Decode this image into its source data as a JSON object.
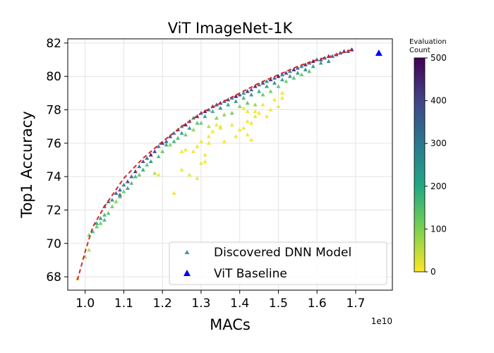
{
  "chart_data": {
    "type": "scatter",
    "title": "ViT ImageNet-1K",
    "xlabel": "MACs",
    "ylabel": "Top1 Accuracy",
    "x_offset_label": "1e10",
    "xlim": [
      0.955,
      1.795
    ],
    "ylim": [
      67.2,
      82.25
    ],
    "x_ticks": [
      1.0,
      1.1,
      1.2,
      1.3,
      1.4,
      1.5,
      1.6,
      1.7
    ],
    "x_tick_labels": [
      "1.0",
      "1.1",
      "1.2",
      "1.3",
      "1.4",
      "1.5",
      "1.6",
      "1.7"
    ],
    "y_ticks": [
      68,
      70,
      72,
      74,
      76,
      78,
      80,
      82
    ],
    "y_tick_labels": [
      "68",
      "70",
      "72",
      "74",
      "76",
      "78",
      "80",
      "82"
    ],
    "grid": true,
    "legend_position": "lower-right",
    "legend": [
      {
        "label": "Discovered DNN Model",
        "marker": "small-triangle",
        "color": "#4a8fc0"
      },
      {
        "label": "ViT Baseline",
        "marker": "triangle",
        "color": "#0000ff"
      }
    ],
    "pareto_front": {
      "style": "dashed",
      "color": "#d62728",
      "points": [
        [
          0.98,
          67.8
        ],
        [
          1.0,
          69.5
        ],
        [
          1.02,
          71.0
        ],
        [
          1.05,
          72.2
        ],
        [
          1.1,
          73.9
        ],
        [
          1.15,
          75.1
        ],
        [
          1.2,
          76.1
        ],
        [
          1.25,
          77.0
        ],
        [
          1.3,
          77.8
        ],
        [
          1.35,
          78.4
        ],
        [
          1.4,
          79.0
        ],
        [
          1.45,
          79.6
        ],
        [
          1.5,
          80.1
        ],
        [
          1.55,
          80.6
        ],
        [
          1.6,
          81.0
        ],
        [
          1.65,
          81.3
        ],
        [
          1.69,
          81.6
        ]
      ]
    },
    "baseline": {
      "label": "ViT Baseline",
      "x": 1.76,
      "y": 81.4,
      "color": "#0000ff"
    },
    "series": [
      {
        "name": "Discovered DNN Model",
        "description": "evaluation count encoded by color",
        "points": [
          [
            0.98,
            67.9,
            40
          ],
          [
            1.0,
            69.2,
            80
          ],
          [
            1.01,
            69.6,
            60
          ],
          [
            1.02,
            70.7,
            150
          ],
          [
            1.03,
            71.2,
            200
          ],
          [
            1.04,
            71.5,
            250
          ],
          [
            1.05,
            71.7,
            180
          ],
          [
            1.05,
            72.2,
            300
          ],
          [
            1.06,
            72.5,
            330
          ],
          [
            1.07,
            72.6,
            260
          ],
          [
            1.08,
            73.0,
            350
          ],
          [
            1.09,
            73.2,
            380
          ],
          [
            1.09,
            72.9,
            420
          ],
          [
            1.1,
            73.5,
            300
          ],
          [
            1.11,
            73.7,
            420
          ],
          [
            1.12,
            74.0,
            360
          ],
          [
            1.13,
            74.3,
            450
          ],
          [
            1.14,
            74.6,
            300
          ],
          [
            1.15,
            74.9,
            400
          ],
          [
            1.16,
            75.1,
            350
          ],
          [
            1.17,
            75.3,
            480
          ],
          [
            1.18,
            75.5,
            420
          ],
          [
            1.19,
            75.8,
            300
          ],
          [
            1.2,
            76.0,
            450
          ],
          [
            1.21,
            76.1,
            360
          ],
          [
            1.22,
            76.4,
            420
          ],
          [
            1.23,
            76.6,
            300
          ],
          [
            1.24,
            76.8,
            400
          ],
          [
            1.25,
            77.0,
            250
          ],
          [
            1.26,
            77.1,
            460
          ],
          [
            1.27,
            77.3,
            380
          ],
          [
            1.28,
            77.5,
            200
          ],
          [
            1.29,
            77.6,
            440
          ],
          [
            1.3,
            77.8,
            350
          ],
          [
            1.31,
            77.9,
            470
          ],
          [
            1.32,
            78.0,
            300
          ],
          [
            1.33,
            78.2,
            420
          ],
          [
            1.34,
            78.3,
            380
          ],
          [
            1.35,
            78.4,
            460
          ],
          [
            1.36,
            78.5,
            340
          ],
          [
            1.37,
            78.6,
            410
          ],
          [
            1.38,
            78.7,
            300
          ],
          [
            1.39,
            78.8,
            480
          ],
          [
            1.4,
            78.9,
            390
          ],
          [
            1.41,
            79.0,
            260
          ],
          [
            1.42,
            79.1,
            430
          ],
          [
            1.43,
            79.2,
            360
          ],
          [
            1.44,
            79.4,
            460
          ],
          [
            1.45,
            79.5,
            320
          ],
          [
            1.46,
            79.6,
            410
          ],
          [
            1.47,
            79.7,
            280
          ],
          [
            1.48,
            79.8,
            440
          ],
          [
            1.49,
            79.9,
            370
          ],
          [
            1.5,
            80.0,
            480
          ],
          [
            1.51,
            80.1,
            330
          ],
          [
            1.52,
            80.2,
            420
          ],
          [
            1.53,
            80.3,
            300
          ],
          [
            1.54,
            80.4,
            460
          ],
          [
            1.55,
            80.5,
            380
          ],
          [
            1.56,
            80.6,
            300
          ],
          [
            1.57,
            80.7,
            440
          ],
          [
            1.58,
            80.8,
            360
          ],
          [
            1.59,
            80.9,
            480
          ],
          [
            1.6,
            81.0,
            300
          ],
          [
            1.61,
            81.0,
            420
          ],
          [
            1.62,
            81.1,
            380
          ],
          [
            1.63,
            81.2,
            460
          ],
          [
            1.64,
            81.2,
            340
          ],
          [
            1.65,
            81.3,
            420
          ],
          [
            1.66,
            81.4,
            380
          ],
          [
            1.67,
            81.5,
            460
          ],
          [
            1.68,
            81.5,
            400
          ],
          [
            1.69,
            81.6,
            480
          ],
          [
            1.01,
            70.5,
            100
          ],
          [
            1.03,
            71.0,
            130
          ],
          [
            1.05,
            71.4,
            160
          ],
          [
            1.07,
            72.2,
            120
          ],
          [
            1.09,
            72.8,
            170
          ],
          [
            1.11,
            73.3,
            220
          ],
          [
            1.13,
            74.0,
            180
          ],
          [
            1.15,
            74.4,
            200
          ],
          [
            1.17,
            74.9,
            240
          ],
          [
            1.19,
            75.2,
            160
          ],
          [
            1.21,
            75.9,
            200
          ],
          [
            1.23,
            76.1,
            180
          ],
          [
            1.25,
            76.6,
            220
          ],
          [
            1.27,
            76.9,
            260
          ],
          [
            1.29,
            77.2,
            150
          ],
          [
            1.31,
            77.6,
            230
          ],
          [
            1.33,
            77.9,
            190
          ],
          [
            1.35,
            78.1,
            270
          ],
          [
            1.37,
            78.3,
            210
          ],
          [
            1.39,
            78.5,
            240
          ],
          [
            1.41,
            78.7,
            180
          ],
          [
            1.43,
            78.9,
            250
          ],
          [
            1.45,
            79.1,
            200
          ],
          [
            1.47,
            79.4,
            230
          ],
          [
            1.49,
            79.6,
            260
          ],
          [
            1.51,
            79.8,
            220
          ],
          [
            1.53,
            80.0,
            260
          ],
          [
            1.55,
            80.2,
            230
          ],
          [
            1.57,
            80.4,
            270
          ],
          [
            1.59,
            80.6,
            240
          ],
          [
            1.61,
            80.8,
            250
          ],
          [
            1.63,
            80.9,
            280
          ],
          [
            1.04,
            71.2,
            120
          ],
          [
            1.06,
            71.8,
            140
          ],
          [
            1.08,
            72.5,
            100
          ],
          [
            1.1,
            73.1,
            130
          ],
          [
            1.12,
            73.6,
            160
          ],
          [
            1.14,
            74.1,
            120
          ],
          [
            1.16,
            74.7,
            140
          ],
          [
            1.18,
            74.2,
            60
          ],
          [
            1.2,
            75.5,
            130
          ],
          [
            1.22,
            75.9,
            100
          ],
          [
            1.24,
            76.3,
            150
          ],
          [
            1.26,
            76.5,
            120
          ],
          [
            1.28,
            76.8,
            90
          ],
          [
            1.3,
            77.2,
            130
          ],
          [
            1.32,
            77.0,
            60
          ],
          [
            1.34,
            77.5,
            110
          ],
          [
            1.36,
            77.7,
            90
          ],
          [
            1.38,
            77.8,
            120
          ],
          [
            1.4,
            78.2,
            100
          ],
          [
            1.42,
            78.4,
            140
          ],
          [
            1.44,
            78.3,
            80
          ],
          [
            1.46,
            78.9,
            130
          ],
          [
            1.48,
            79.1,
            110
          ],
          [
            1.5,
            79.4,
            140
          ],
          [
            1.52,
            79.7,
            120
          ],
          [
            1.54,
            79.9,
            150
          ],
          [
            1.56,
            80.1,
            130
          ],
          [
            1.58,
            80.3,
            150
          ],
          [
            1.19,
            74.1,
            10
          ],
          [
            1.23,
            73.0,
            10
          ],
          [
            1.25,
            74.4,
            10
          ],
          [
            1.26,
            75.6,
            10
          ],
          [
            1.27,
            74.1,
            10
          ],
          [
            1.25,
            75.5,
            10
          ],
          [
            1.28,
            75.5,
            10
          ],
          [
            1.29,
            75.8,
            10
          ],
          [
            1.29,
            73.9,
            10
          ],
          [
            1.3,
            74.8,
            10
          ],
          [
            1.3,
            76.1,
            10
          ],
          [
            1.31,
            75.3,
            10
          ],
          [
            1.31,
            74.9,
            10
          ],
          [
            1.32,
            76.0,
            10
          ],
          [
            1.32,
            76.4,
            10
          ],
          [
            1.33,
            76.7,
            10
          ],
          [
            1.34,
            77.1,
            10
          ],
          [
            1.35,
            76.9,
            10
          ],
          [
            1.35,
            77.0,
            10
          ],
          [
            1.36,
            76.1,
            10
          ],
          [
            1.38,
            77.1,
            10
          ],
          [
            1.39,
            76.4,
            10
          ],
          [
            1.4,
            76.8,
            10
          ],
          [
            1.41,
            76.9,
            10
          ],
          [
            1.42,
            76.5,
            10
          ],
          [
            1.42,
            77.3,
            10
          ],
          [
            1.43,
            77.2,
            10
          ],
          [
            1.43,
            76.2,
            10
          ],
          [
            1.44,
            77.9,
            10
          ],
          [
            1.44,
            77.6,
            10
          ],
          [
            1.45,
            77.8,
            10
          ],
          [
            1.46,
            78.3,
            10
          ],
          [
            1.47,
            77.6,
            10
          ],
          [
            1.48,
            78.0,
            10
          ],
          [
            1.49,
            78.6,
            10
          ],
          [
            1.5,
            78.2,
            10
          ],
          [
            1.51,
            79.0,
            10
          ],
          [
            1.51,
            78.7,
            10
          ],
          [
            1.41,
            78.1,
            10
          ],
          [
            1.42,
            77.9,
            10
          ]
        ]
      }
    ],
    "colorbar": {
      "title_line1": "Evaluation",
      "title_line2": "Count",
      "min": 0,
      "max": 500,
      "ticks": [
        0,
        100,
        200,
        300,
        400,
        500
      ],
      "tick_labels": [
        "0",
        "100",
        "200",
        "300",
        "400",
        "500"
      ],
      "colormap": "viridis",
      "stops": [
        "#440154",
        "#414487",
        "#2a788e",
        "#22a884",
        "#7ad151",
        "#fde725"
      ]
    }
  }
}
